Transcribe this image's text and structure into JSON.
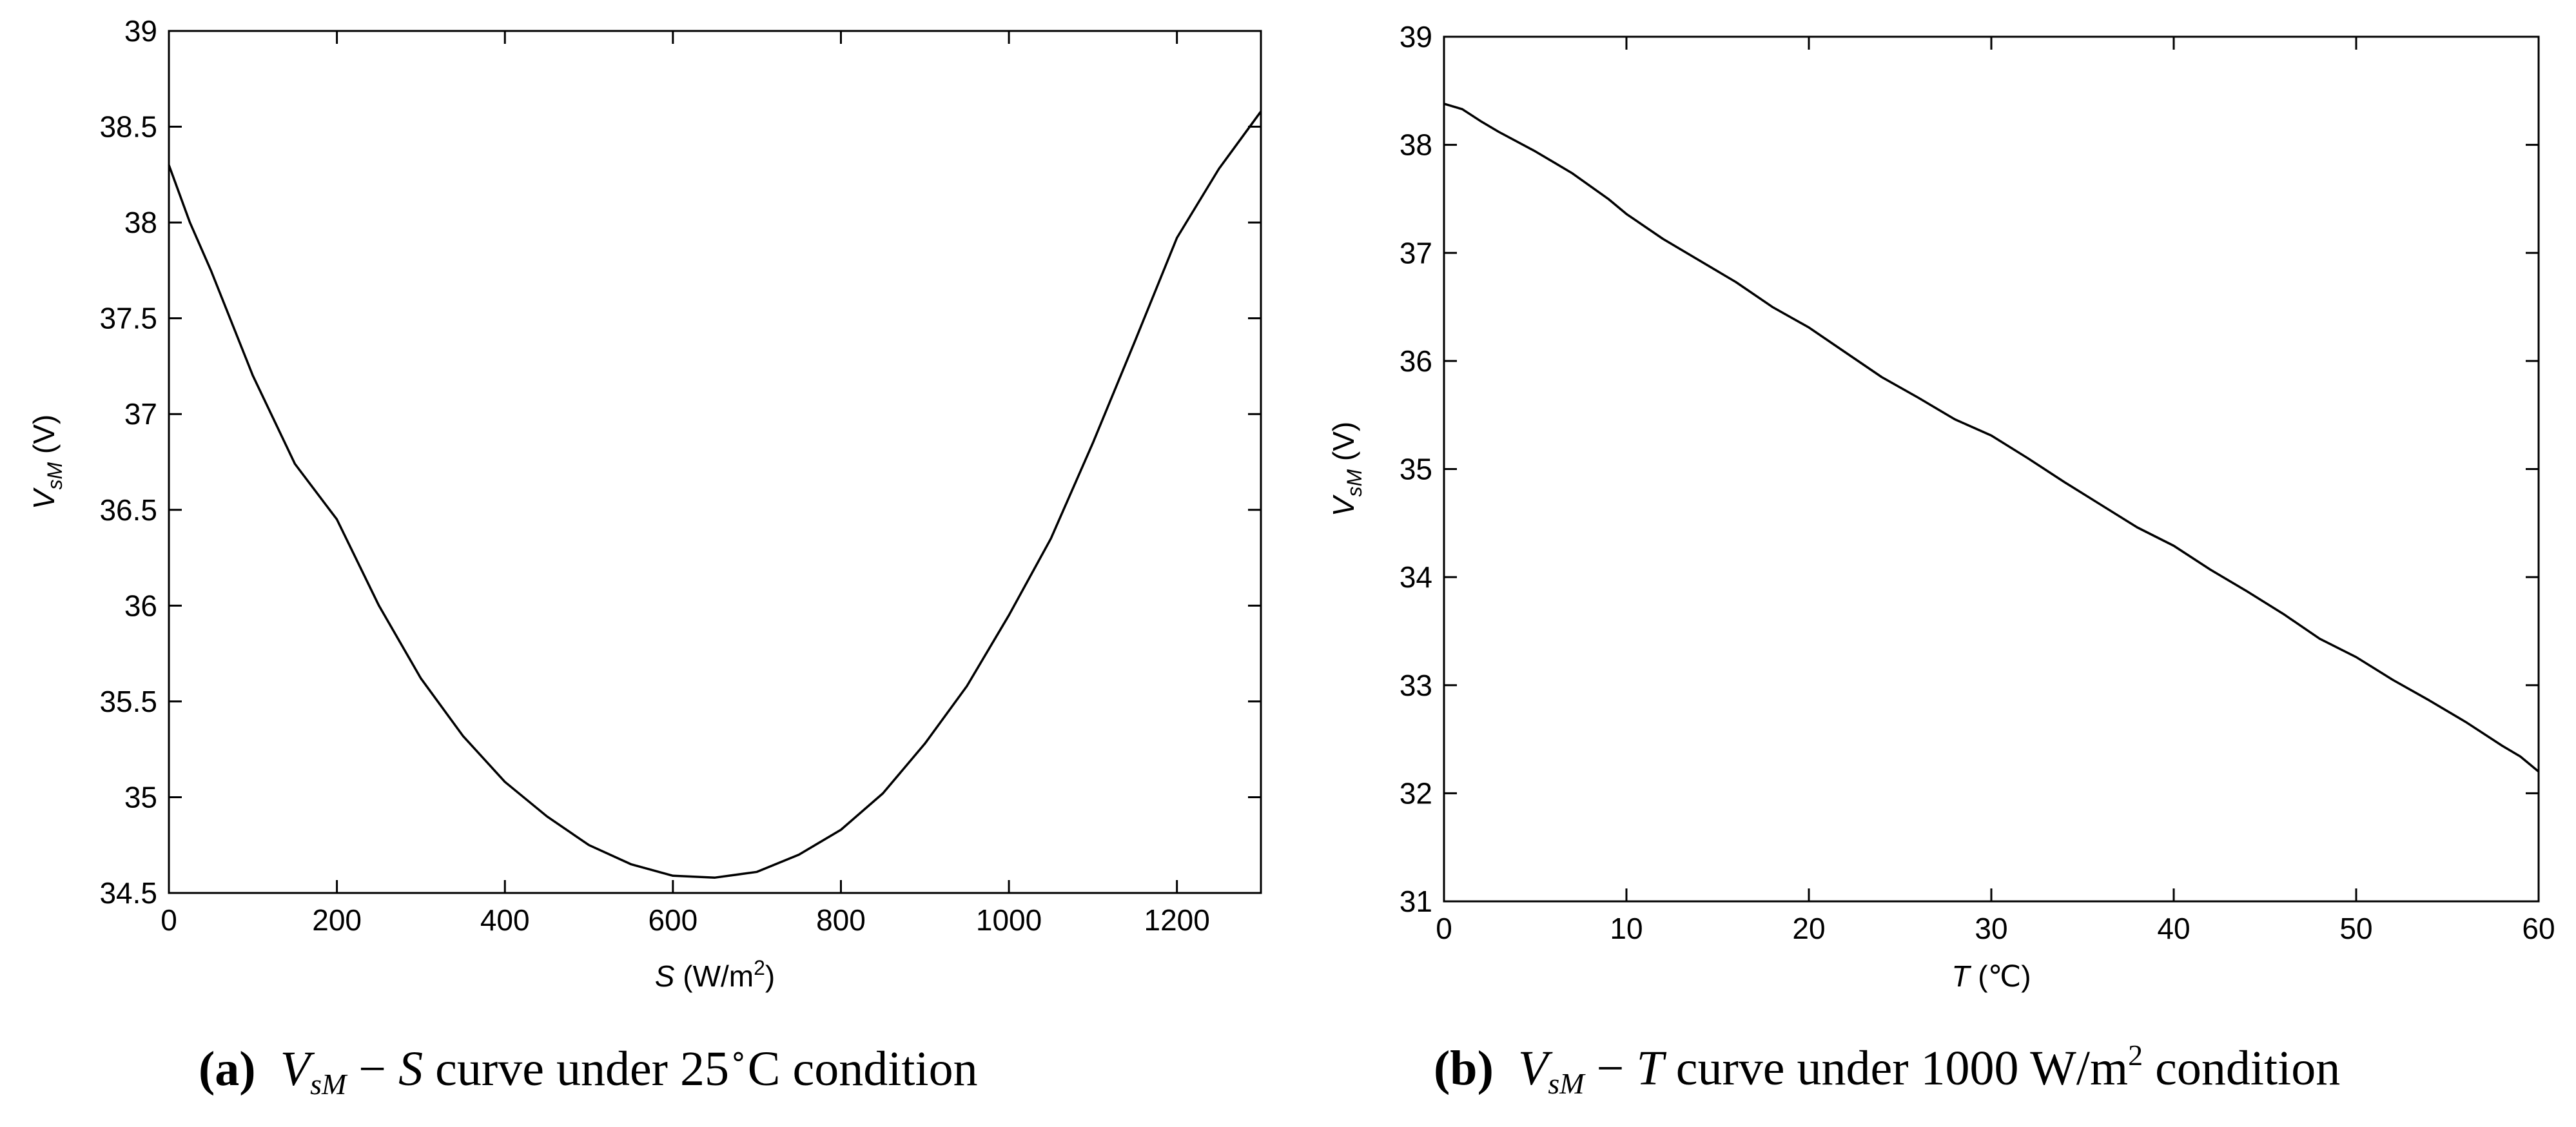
{
  "chart_data": [
    {
      "type": "line",
      "panel": "a",
      "xlabel_var": "S",
      "xlabel_unit": " (W/m",
      "xlabel_sup": "2",
      "xlabel_close": ")",
      "ylabel_var": "V",
      "ylabel_sub": "sM",
      "ylabel_unit": " (V)",
      "xlim": [
        0,
        1300
      ],
      "ylim": [
        34.5,
        39
      ],
      "x_ticks": [
        0,
        200,
        400,
        600,
        800,
        1000,
        1200
      ],
      "y_ticks": [
        34.5,
        35,
        35.5,
        36,
        36.5,
        37,
        37.5,
        38,
        38.5,
        39
      ],
      "x_tick_labels": [
        "0",
        "200",
        "400",
        "600",
        "800",
        "1000",
        "1200"
      ],
      "y_tick_labels": [
        "34.5",
        "35",
        "35.5",
        "36",
        "36.5",
        "37",
        "37.5",
        "38",
        "38.5",
        "39"
      ],
      "series": [
        {
          "name": "VsM-S",
          "x": [
            0,
            25,
            50,
            100,
            150,
            200,
            250,
            300,
            350,
            400,
            450,
            500,
            550,
            600,
            650,
            700,
            750,
            800,
            850,
            900,
            950,
            1000,
            1050,
            1100,
            1150,
            1200,
            1250,
            1300
          ],
          "y": [
            38.3,
            38.0,
            37.75,
            37.2,
            36.74,
            36.45,
            36.0,
            35.62,
            35.32,
            35.08,
            34.9,
            34.75,
            34.65,
            34.59,
            34.58,
            34.61,
            34.7,
            34.83,
            35.02,
            35.28,
            35.58,
            35.95,
            36.35,
            36.85,
            37.38,
            37.92,
            38.28,
            38.58
          ]
        }
      ],
      "caption": {
        "label": "(a)",
        "v": "V",
        "v_sub": "sM",
        "dash": " − ",
        "var": "S",
        "text1": "  curve under 25",
        "deg": "∘",
        "unit": "C",
        "text2": "  condition"
      }
    },
    {
      "type": "line",
      "panel": "b",
      "xlabel_var": "T",
      "xlabel_unit": " (℃)",
      "ylabel_var": "V",
      "ylabel_sub": "sM",
      "ylabel_unit": " (V)",
      "xlim": [
        0,
        60
      ],
      "ylim": [
        31,
        39
      ],
      "x_ticks": [
        0,
        10,
        20,
        30,
        40,
        50,
        60
      ],
      "y_ticks": [
        31,
        32,
        33,
        34,
        35,
        36,
        37,
        38,
        39
      ],
      "x_tick_labels": [
        "0",
        "10",
        "20",
        "30",
        "40",
        "50",
        "60"
      ],
      "y_tick_labels": [
        "31",
        "32",
        "33",
        "34",
        "35",
        "36",
        "37",
        "38",
        "39"
      ],
      "series": [
        {
          "name": "VsM-T",
          "x": [
            0,
            1,
            2,
            3,
            5,
            7,
            9,
            10,
            12,
            14,
            16,
            18,
            20,
            22,
            24,
            26,
            28,
            30,
            32,
            34,
            36,
            38,
            40,
            42,
            44,
            46,
            48,
            50,
            52,
            54,
            56,
            58,
            59,
            60
          ],
          "y": [
            38.38,
            38.33,
            38.22,
            38.12,
            37.94,
            37.74,
            37.5,
            37.36,
            37.13,
            36.93,
            36.73,
            36.5,
            36.31,
            36.08,
            35.85,
            35.66,
            35.46,
            35.31,
            35.1,
            34.88,
            34.67,
            34.46,
            34.29,
            34.07,
            33.87,
            33.66,
            33.43,
            33.26,
            33.05,
            32.86,
            32.66,
            32.44,
            32.34,
            32.2
          ]
        }
      ],
      "caption": {
        "label": "(b)",
        "v": "V",
        "v_sub": "sM",
        "dash": " − ",
        "var": "T",
        "text1": "  curve under 1000 W/m",
        "sup": "2",
        "text2": "  condition"
      }
    }
  ]
}
